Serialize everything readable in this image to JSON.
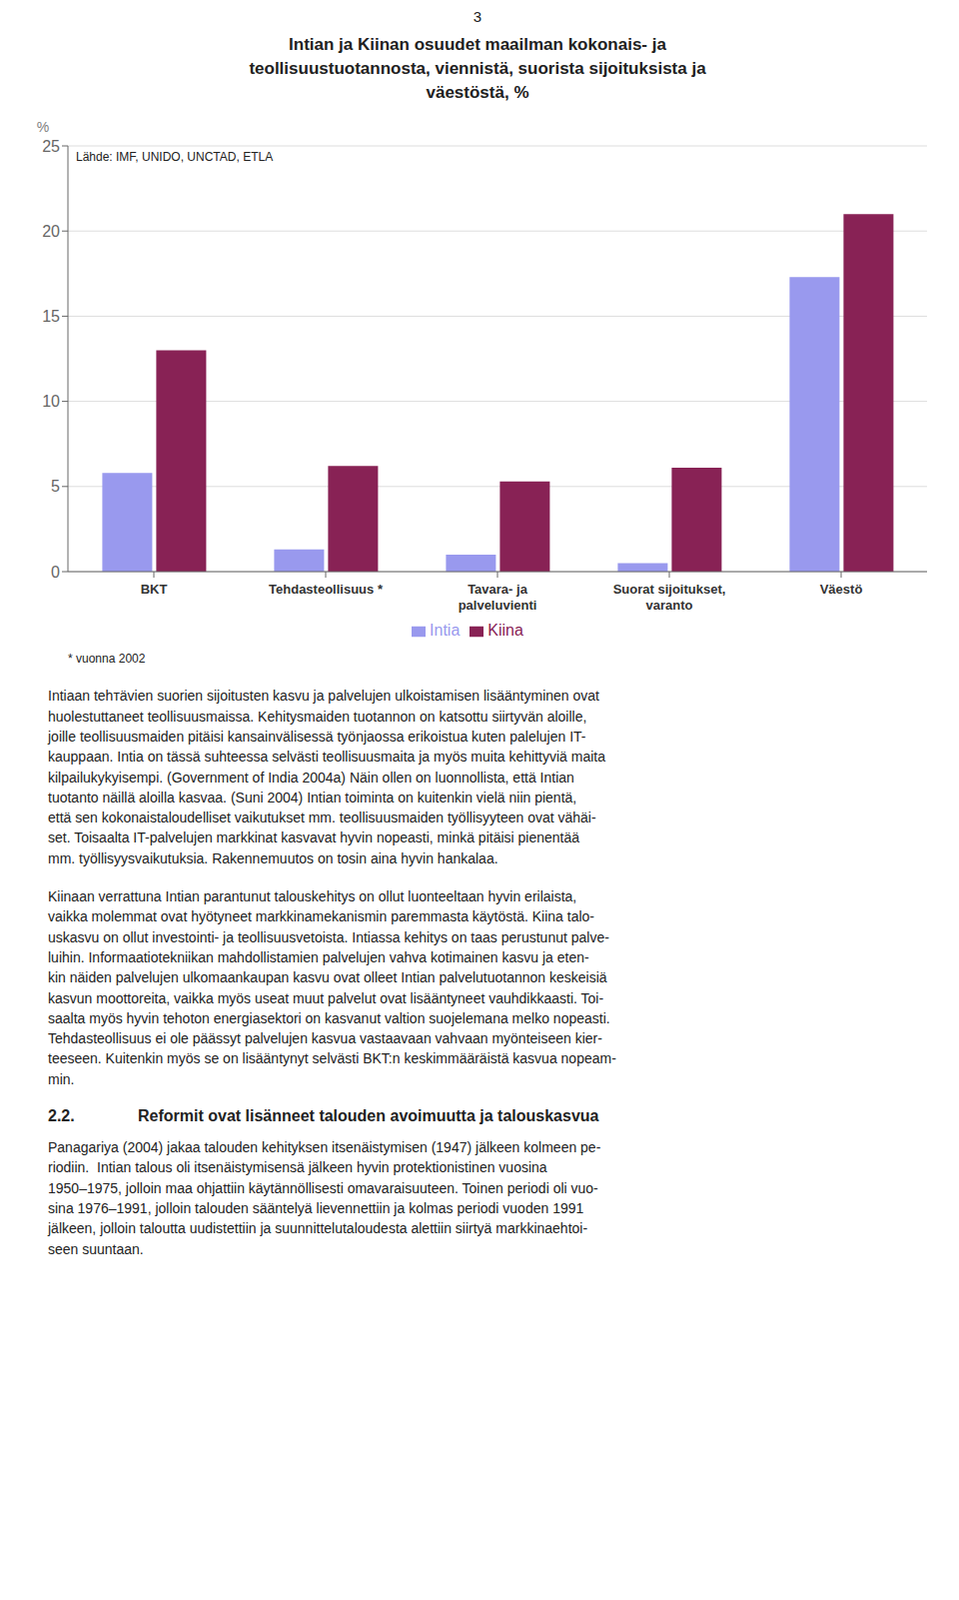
{
  "chart_data": {
    "type": "bar",
    "title": "Intian ja Kiinan osuudet maailman kokonais- ja\nteollisuustuotannosta, viennistä, suorista sijoituksista ja\nväestöstä, %",
    "y_label": "%",
    "categories": [
      "BKT",
      "Tehdasteollisuus *",
      "Tavara- ja\npalveluvienti",
      "Suorat sijoitukset,\nvaranto",
      "Väestö"
    ],
    "series": [
      {
        "name": "Intia",
        "color": "#9999ee",
        "values": [
          5.8,
          1.3,
          1.0,
          0.5,
          17.3
        ]
      },
      {
        "name": "Kiina",
        "color": "#882255",
        "values": [
          13.0,
          6.2,
          5.3,
          6.1,
          21.0
        ]
      }
    ],
    "ylim": [
      0,
      25
    ],
    "yticks": [
      0,
      5,
      10,
      15,
      20,
      25
    ],
    "grid": true,
    "legend": "bottom",
    "annotations": [
      "3",
      "Lähde: IMF, UNIDO, UNCTAD, ETLA",
      "* vuonna 2002",
      "Intiaan tehтävien suorien sijoitusten kasvu ja palvelujen ulkoistamisen lisääntyminen ovat\nhuolestuttaneet teollisuusmaissa. Kehitysmaiden tuotannon on katsottu siirtyvän aloille,\njoille teollisuusmaiden pitäisi kansainvälisessä työnjaossa erikoistua kuten palelujen IT-\nkauppaan. Intia on tässä suhteessa selvästi teollisuusmaita ja myös muita kehittyviä maita\nkilpailukykyisempi. (Government of India 2004a) Näin ollen on luonnollista, että Intian\ntuotanto näillä aloilla kasvaa. (Suni 2004) Intian toiminta on kuitenkin vielä niin pientä,\nettä sen kokonaistaloudelliset vaikutukset mm. teollisuusmaiden työllisyyteen ovat vähäi-\nset. Toisaalta IT-palvelujen markkinat kasvavat hyvin nopeasti, minkä pitäisi pienentää\nmm. työllisyysvaikutuksia. Rakennemuutos on tosin aina hyvin hankalaa.",
      "Kiinaan verrattuna Intian parantunut talouskehitys on ollut luonteeltaan hyvin erilaista,\nvaikka molemmat ovat hyötyneet markkinamekanismin paremmasta käytöstä. Kiina talo-\nuskasvu on ollut investointi- ja teollisuusvetoista. Intiassa kehitys on taas perustunut palve-\nluihin. Informaatiotekniikan mahdollistamien palvelujen vahva kotimainen kasvu ja eten-\nkin näiden palvelujen ulkomaankaupan kasvu ovat olleet Intian palvelutuotannon keskeisiä\nkasvun moottoreita, vaikka myös useat muut palvelut ovat lisääntyneet vauhdikkaasti. Toi-\nsaalta myös hyvin tehoton energiasektori on kasvanut valtion suojelemana melko nopeasti.\nTehdasteollisuus ei ole päässyt palvelujen kasvua vastaavaan vahvaan myönteiseen kier-\nteeseen. Kuitenkin myös se on lisääntynyt selvästi BKT:n keskimmääräistä kasvua nopeam-\nmin.",
      "2.2.",
      "Reformit ovat lisänneet talouden avoimuutta ja talouskasvua",
      "Panagariya (2004) jakaa talouden kehityksen itsenäistymisen (1947) jälkeen kolmeen pe-\nriodiin.  Intian talous oli itsenäistymisensä jälkeen hyvin protektionistinen vuosina\n1950–1975, jolloin maa ohjattiin käytännöllisesti omavaraisuuteen. Toinen periodi oli vuo-\nsina 1976–1991, jolloin talouden sääntelyä lievennettiin ja kolmas periodi vuoden 1991\njälkeen, jolloin taloutta uudistettiin ja suunnittelutaloudesta alettiin siirtyä markkinaehtoi-\nseen suuntaan."
    ]
  }
}
